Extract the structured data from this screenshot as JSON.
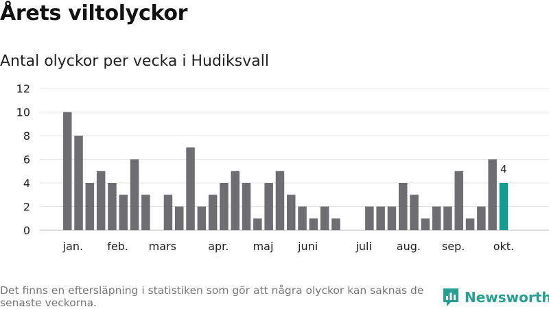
{
  "title": "Årets viltolyckor",
  "subtitle": "Antal olyckor per vecka i Hudiksvall",
  "footnote": "Det finns en eftersläpning i statistiken som gör att några olyckor kan saknas de senaste veckorna.",
  "brand": {
    "name": "Newsworthy",
    "color": "#27a091"
  },
  "chart_data": {
    "type": "bar",
    "weeks": [
      1,
      2,
      3,
      4,
      5,
      6,
      7,
      8,
      9,
      10,
      11,
      12,
      13,
      14,
      15,
      16,
      17,
      18,
      19,
      20,
      21,
      22,
      23,
      24,
      25,
      26,
      27,
      28,
      29,
      30,
      31,
      32,
      33,
      34,
      35,
      36,
      37,
      38,
      39,
      40
    ],
    "values": [
      10,
      8,
      4,
      5,
      4,
      3,
      6,
      3,
      0,
      3,
      2,
      7,
      2,
      3,
      4,
      5,
      4,
      1,
      4,
      5,
      3,
      2,
      1,
      2,
      1,
      0,
      0,
      2,
      2,
      2,
      4,
      3,
      1,
      2,
      2,
      5,
      1,
      2,
      6,
      4
    ],
    "ylim": [
      0,
      12
    ],
    "yticks": [
      0,
      2,
      4,
      6,
      8,
      10,
      12
    ],
    "month_labels": [
      {
        "label": "jan.",
        "week": 1.5
      },
      {
        "label": "feb.",
        "week": 5.5
      },
      {
        "label": "mars",
        "week": 9.5
      },
      {
        "label": "apr.",
        "week": 14.5
      },
      {
        "label": "maj",
        "week": 18.5
      },
      {
        "label": "juni",
        "week": 22.5
      },
      {
        "label": "juli",
        "week": 27.5
      },
      {
        "label": "aug.",
        "week": 31.5
      },
      {
        "label": "sep.",
        "week": 35.5
      },
      {
        "label": "okt.",
        "week": 40
      }
    ],
    "highlight_last": true,
    "highlight_label": "4",
    "bar_color": "#6e6d72",
    "highlight_color": "#139c91",
    "grid": true
  }
}
